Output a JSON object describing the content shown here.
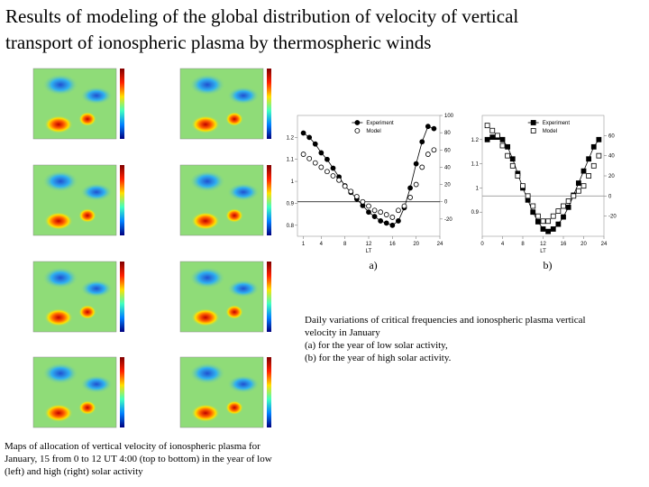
{
  "title": [
    "Results of modeling of the global distribution of velocity of vertical",
    "transport of ionospheric plasma by thermospheric winds"
  ],
  "maps_caption": [
    "Maps of allocation of vertical velocity of ionospheric plasma for",
    "January, 15 from 0 to 12 UT 4:00 (top to bottom) in the year of low",
    "(left) and high (right) solar activity"
  ],
  "charts_caption": [
    "Daily variations of critical frequencies and ionospheric plasma vertical",
    "velocity in January",
    "(a)  for the year of low solar activity,",
    "(b)  for the year of high solar activity."
  ],
  "chart_data": [
    {
      "type": "line",
      "panel_label": "a)",
      "x_label": "LT",
      "x": [
        1,
        2,
        3,
        4,
        5,
        6,
        7,
        8,
        9,
        10,
        11,
        12,
        13,
        14,
        15,
        16,
        17,
        18,
        19,
        20,
        21,
        22,
        23
      ],
      "xlim": [
        0,
        24
      ],
      "xticks": [
        1,
        4,
        8,
        12,
        16,
        20,
        24
      ],
      "ylim": [
        0.75,
        1.3
      ],
      "yticks": [
        0.8,
        0.9,
        1.0,
        1.1,
        1.2
      ],
      "y2lim": [
        -40,
        100
      ],
      "y2ticks": [
        -20,
        0,
        20,
        40,
        60,
        80,
        100
      ],
      "series": [
        {
          "name": "Experiment",
          "color": "#000000",
          "marker": "filled-circle",
          "values": [
            1.22,
            1.2,
            1.17,
            1.13,
            1.1,
            1.06,
            1.02,
            0.98,
            0.95,
            0.92,
            0.89,
            0.86,
            0.84,
            0.82,
            0.81,
            0.8,
            0.82,
            0.88,
            0.97,
            1.08,
            1.18,
            1.25,
            1.24
          ]
        },
        {
          "name": "Model",
          "color": "#000000",
          "marker": "open-circle",
          "axis": "y2",
          "values": [
            55,
            50,
            45,
            40,
            35,
            30,
            25,
            18,
            12,
            6,
            0,
            -5,
            -10,
            -12,
            -15,
            -18,
            -10,
            -5,
            5,
            20,
            40,
            55,
            60
          ]
        }
      ]
    },
    {
      "type": "line",
      "panel_label": "b)",
      "x_label": "LT",
      "x": [
        1,
        2,
        3,
        4,
        5,
        6,
        7,
        8,
        9,
        10,
        11,
        12,
        13,
        14,
        15,
        16,
        17,
        18,
        19,
        20,
        21,
        22,
        23
      ],
      "xlim": [
        0,
        24
      ],
      "xticks": [
        0,
        4,
        8,
        12,
        16,
        20,
        24
      ],
      "ylim": [
        0.8,
        1.3
      ],
      "yticks": [
        0.9,
        1.0,
        1.1,
        1.2
      ],
      "y2lim": [
        -40,
        80
      ],
      "y2ticks": [
        -20,
        0,
        20,
        40,
        60
      ],
      "series": [
        {
          "name": "Experiment",
          "color": "#000000",
          "marker": "filled-square",
          "values": [
            1.2,
            1.21,
            1.21,
            1.2,
            1.17,
            1.12,
            1.06,
            1.0,
            0.95,
            0.9,
            0.86,
            0.83,
            0.82,
            0.83,
            0.85,
            0.88,
            0.92,
            0.97,
            1.02,
            1.07,
            1.12,
            1.17,
            1.2
          ]
        },
        {
          "name": "Model",
          "color": "#000000",
          "marker": "open-square",
          "axis": "y2",
          "values": [
            70,
            65,
            60,
            50,
            40,
            30,
            20,
            10,
            0,
            -10,
            -20,
            -25,
            -25,
            -20,
            -15,
            -10,
            -5,
            0,
            5,
            10,
            20,
            30,
            40
          ]
        }
      ]
    }
  ]
}
